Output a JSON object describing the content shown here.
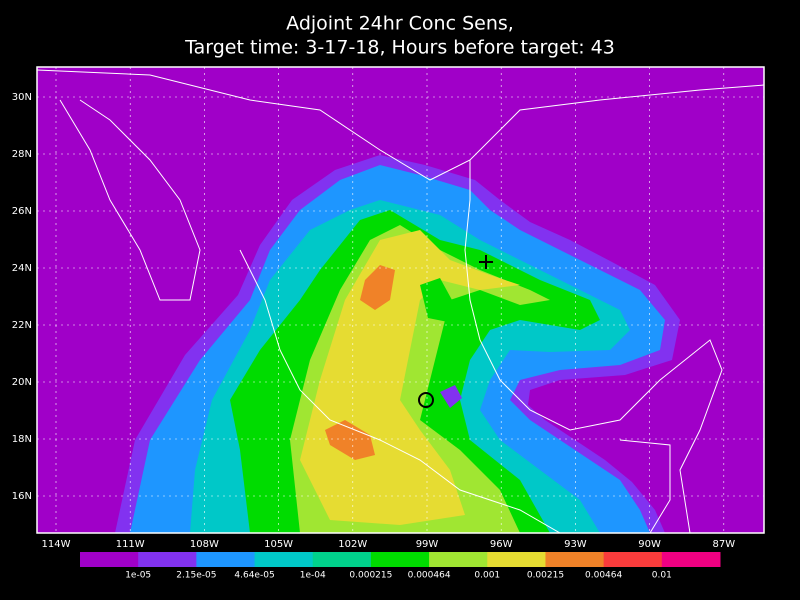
{
  "title": [
    "Adjoint 24hr Conc Sens,",
    "Target time: 3-17-18, Hours before target: 43"
  ],
  "lat_labels": [
    "30N",
    "28N",
    "26N",
    "24N",
    "22N",
    "20N",
    "18N",
    "16N"
  ],
  "lon_labels": [
    "114W",
    "111W",
    "108W",
    "105W",
    "102W",
    "99W",
    "96W",
    "93W",
    "90W",
    "87W"
  ],
  "colorbar": {
    "colors": [
      "#a000c8",
      "#8232f0",
      "#1e96ff",
      "#00c8c8",
      "#00d28c",
      "#00dc00",
      "#a0e632",
      "#e6dc32",
      "#f08228",
      "#fa3c3c",
      "#f00082"
    ],
    "labels": [
      "1e-05",
      "2.15e-05",
      "4.64e-05",
      "1e-04",
      "0.000215",
      "0.000464",
      "0.001",
      "0.00215",
      "0.00464",
      "0.01"
    ]
  }
}
